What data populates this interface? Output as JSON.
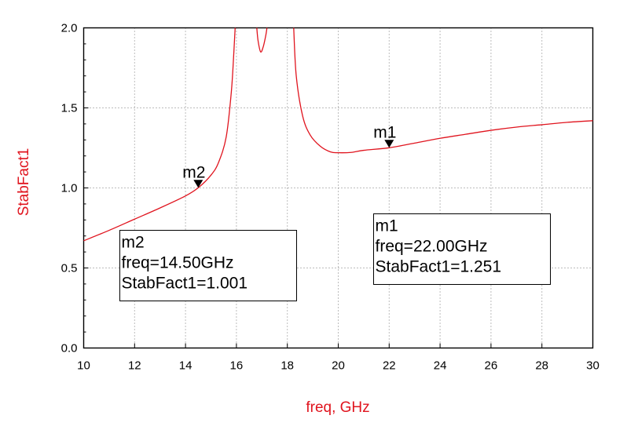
{
  "chart_data": {
    "type": "line",
    "xlabel": "freq, GHz",
    "ylabel": "StabFact1",
    "xlim": [
      10,
      30
    ],
    "ylim": [
      0,
      2
    ],
    "x_ticks": [
      "10",
      "12",
      "14",
      "16",
      "18",
      "20",
      "22",
      "24",
      "26",
      "28",
      "30"
    ],
    "y_ticks": [
      "0.0",
      "0.5",
      "1.0",
      "1.5",
      "2.0"
    ],
    "grid": true,
    "series": [
      {
        "color": "#e0141e",
        "segments": [
          {
            "x": [
              10,
              11,
              12,
              13,
              14,
              14.5,
              15,
              15.3,
              15.6,
              15.8,
              15.9,
              15.95
            ],
            "y": [
              0.67,
              0.735,
              0.805,
              0.875,
              0.95,
              1.001,
              1.08,
              1.16,
              1.32,
              1.6,
              1.85,
              2.0
            ]
          },
          {
            "x": [
              16.8,
              16.85,
              16.95,
              17.05,
              17.15,
              17.2
            ],
            "y": [
              2.0,
              1.92,
              1.85,
              1.88,
              1.95,
              2.0
            ]
          },
          {
            "x": [
              18.25,
              18.35,
              18.6,
              18.9,
              19.3,
              19.7,
              20.0,
              20.5,
              21.0,
              22.0,
              23.0,
              24.0,
              25.0,
              26.0,
              27.0,
              28.0,
              29.0,
              30.0
            ],
            "y": [
              2.0,
              1.7,
              1.45,
              1.33,
              1.26,
              1.225,
              1.22,
              1.222,
              1.235,
              1.251,
              1.28,
              1.31,
              1.335,
              1.36,
              1.38,
              1.395,
              1.41,
              1.42
            ]
          }
        ]
      }
    ],
    "markers": [
      {
        "name": "m1",
        "x": 22.0,
        "y": 1.251,
        "lines": [
          "m1",
          "freq=22.00GHz",
          "StabFact1=1.251"
        ]
      },
      {
        "name": "m2",
        "x": 14.5,
        "y": 1.001,
        "lines": [
          "m2",
          "freq=14.50GHz",
          "StabFact1=1.001"
        ]
      }
    ]
  }
}
